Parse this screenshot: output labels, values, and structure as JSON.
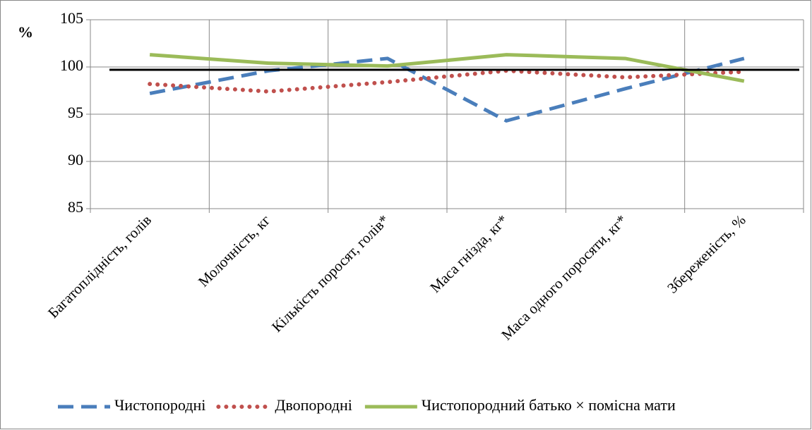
{
  "chart_data": {
    "type": "line",
    "y_label": "%",
    "categories": [
      "Багатоплідність, голів",
      "Молочність, кг",
      "Кількість поросят, голів*",
      "Маса гнізда, кг*",
      "Маса одного поросяти, кг*",
      "Збереженість, %"
    ],
    "series": [
      {
        "name": "Чистопородні",
        "color": "#4a7ebb",
        "dash": "dashed",
        "values": [
          97.2,
          99.6,
          100.9,
          94.3,
          97.7,
          100.9
        ]
      },
      {
        "name": "Двопородні",
        "color": "#c0504d",
        "dash": "dotted",
        "values": [
          98.2,
          97.4,
          98.4,
          99.6,
          98.9,
          99.5
        ]
      },
      {
        "name": "Чистопородний батько × помісна мати",
        "color": "#9bbb59",
        "dash": "solid",
        "values": [
          101.3,
          100.4,
          100.1,
          101.3,
          100.9,
          98.5
        ]
      }
    ],
    "reference_line": {
      "value": 99.7,
      "color": "#000000"
    },
    "ylim": [
      85,
      105
    ],
    "yticks": [
      85,
      90,
      95,
      100,
      105
    ],
    "grid": true,
    "legend": "bottom"
  }
}
